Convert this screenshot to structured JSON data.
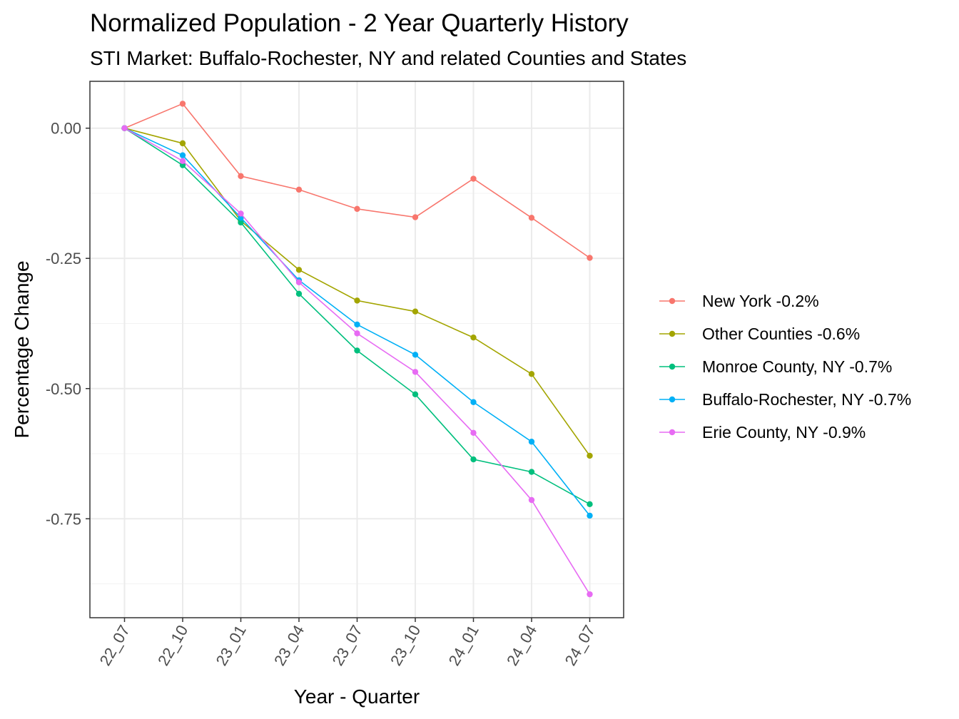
{
  "chart_data": {
    "type": "line",
    "title": "Normalized Population - 2 Year Quarterly History",
    "subtitle": "STI Market: Buffalo-Rochester, NY and related Counties and States",
    "xlabel": "Year - Quarter",
    "ylabel": "Percentage Change",
    "categories": [
      "22_07",
      "22_10",
      "23_01",
      "23_04",
      "23_07",
      "23_10",
      "24_01",
      "24_04",
      "24_07"
    ],
    "ylim": [
      -0.94,
      0.09
    ],
    "yticks": [
      0.0,
      -0.25,
      -0.5,
      -0.75
    ],
    "ytick_labels": [
      "0.00",
      "-0.25",
      "-0.50",
      "-0.75"
    ],
    "grid": true,
    "legend_position": "right",
    "series": [
      {
        "name": "New York -0.2%",
        "color": "#F8766D",
        "values": [
          0.0,
          0.047,
          -0.092,
          -0.118,
          -0.155,
          -0.171,
          -0.097,
          -0.172,
          -0.249
        ]
      },
      {
        "name": "Other Counties -0.6%",
        "color": "#A3A500",
        "values": [
          0.0,
          -0.029,
          -0.178,
          -0.272,
          -0.331,
          -0.352,
          -0.402,
          -0.472,
          -0.629
        ]
      },
      {
        "name": "Monroe County, NY -0.7%",
        "color": "#00BF7D",
        "values": [
          0.0,
          -0.071,
          -0.181,
          -0.318,
          -0.427,
          -0.511,
          -0.636,
          -0.66,
          -0.722
        ]
      },
      {
        "name": "Buffalo-Rochester, NY -0.7%",
        "color": "#00B0F6",
        "values": [
          0.0,
          -0.052,
          -0.172,
          -0.292,
          -0.377,
          -0.435,
          -0.526,
          -0.602,
          -0.744
        ]
      },
      {
        "name": "Erie County, NY -0.9%",
        "color": "#E76BF3",
        "values": [
          0.0,
          -0.063,
          -0.164,
          -0.296,
          -0.394,
          -0.468,
          -0.585,
          -0.714,
          -0.895
        ]
      }
    ]
  }
}
